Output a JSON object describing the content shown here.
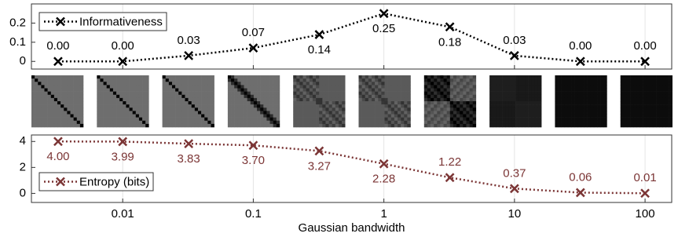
{
  "chart_data": [
    {
      "type": "line",
      "x": [
        0.0032,
        0.01,
        0.032,
        0.1,
        0.32,
        1,
        3.2,
        10,
        32,
        100
      ],
      "log_x": true,
      "xlim": [
        0.002,
        160
      ],
      "xticks": [
        0.01,
        0.1,
        1,
        10,
        100
      ],
      "ylim": [
        -0.04,
        0.3
      ],
      "yticks": [
        0,
        0.1,
        0.2
      ],
      "grid": "x",
      "legend": "upper left",
      "series": [
        {
          "name": "Informativeness",
          "color": "#000000",
          "values": [
            0,
            0,
            0.03,
            0.07,
            0.14,
            0.25,
            0.18,
            0.03,
            0,
            0
          ],
          "value_labels": [
            "0.00",
            "0.00",
            "0.03",
            "0.07",
            "0.14",
            "0.25",
            "0.18",
            "0.03",
            "0.00",
            "0.00"
          ]
        }
      ]
    },
    {
      "type": "line",
      "x": [
        0.0032,
        0.01,
        0.032,
        0.1,
        0.32,
        1,
        3.2,
        10,
        32,
        100
      ],
      "log_x": true,
      "xlim": [
        0.002,
        160
      ],
      "xticks": [
        0.01,
        0.1,
        1,
        10,
        100
      ],
      "xlabel": "Gaussian bandwidth",
      "ylim": [
        -0.7,
        4.5
      ],
      "yticks": [
        0,
        2,
        4
      ],
      "grid": "x",
      "legend": "lower left",
      "series": [
        {
          "name": "Entropy (bits)",
          "color": "#7b3535",
          "values": [
            4,
            3.99,
            3.83,
            3.7,
            3.27,
            2.28,
            1.22,
            0.37,
            0.06,
            0.01
          ],
          "value_labels": [
            "4.00",
            "3.99",
            "3.83",
            "3.70",
            "3.27",
            "2.28",
            "1.22",
            "0.37",
            "0.06",
            "0.01"
          ]
        }
      ]
    }
  ]
}
